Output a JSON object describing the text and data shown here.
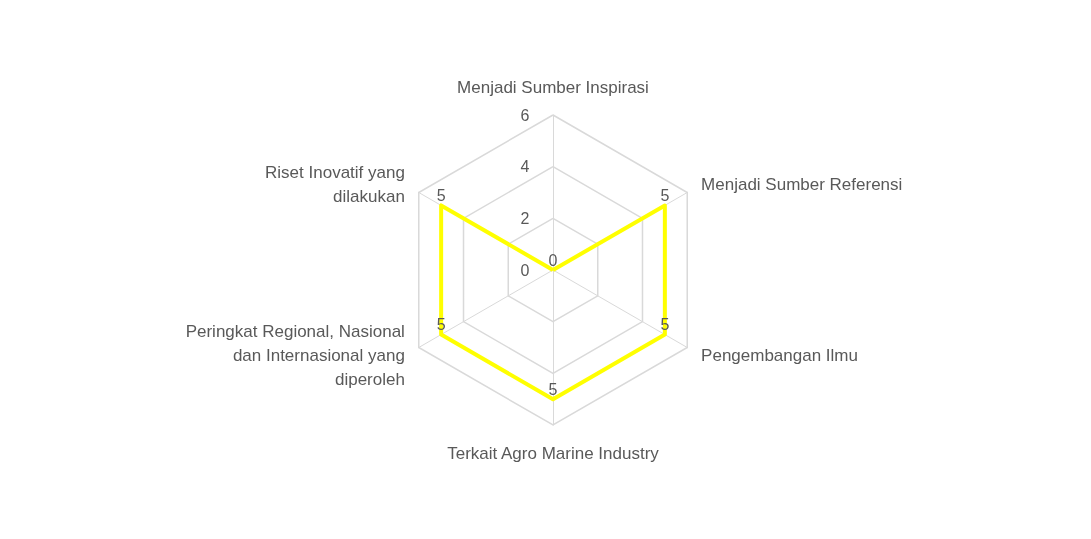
{
  "chart_data": {
    "type": "radar",
    "categories": [
      "Menjadi Sumber Inspirasi",
      "Menjadi Sumber Referensi",
      "Pengembangan Ilmu",
      "Terkait Agro Marine Industry",
      "Peringkat Regional, Nasional dan Internasional yang diperoleh",
      "Riset Inovatif yang dilakukan"
    ],
    "series": [
      {
        "color": "#ffff00",
        "values": [
          0,
          5,
          5,
          5,
          5,
          5
        ]
      }
    ],
    "ylim": [
      0,
      6
    ],
    "yticks": [
      0,
      2,
      4,
      6
    ],
    "data_labels": true,
    "grid": true
  }
}
